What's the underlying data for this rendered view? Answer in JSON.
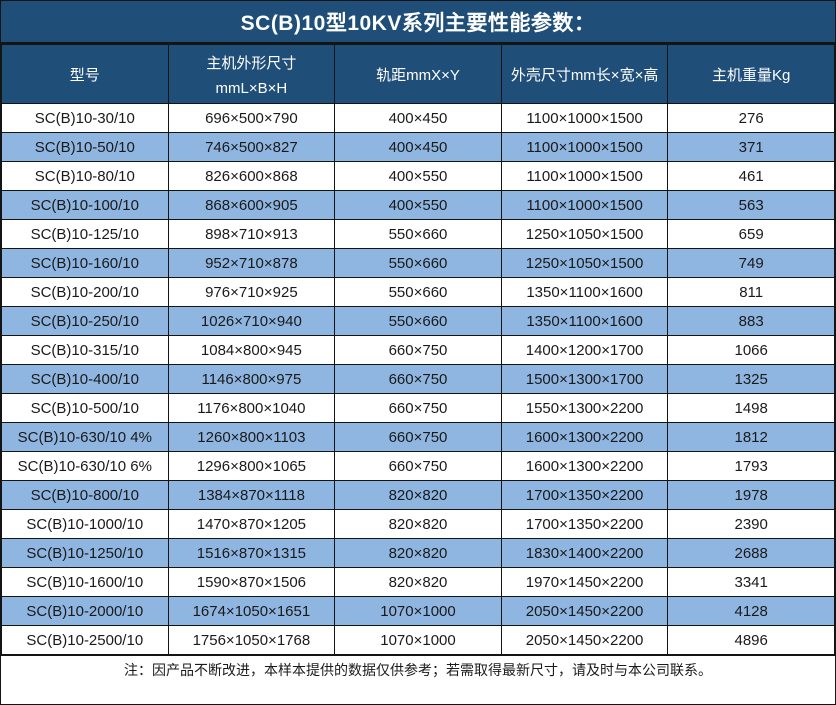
{
  "table": {
    "title": "SC(B)10型10KV系列主要性能参数：",
    "columns": [
      {
        "label": "型号"
      },
      {
        "label": "主机外形尺寸",
        "sub": "mmL×B×H"
      },
      {
        "label": "轨距mmX×Y"
      },
      {
        "label": "外壳尺寸mm长×宽×高"
      },
      {
        "label": "主机重量Kg"
      }
    ],
    "rows": [
      [
        "SC(B)10-30/10",
        "696×500×790",
        "400×450",
        "1100×1000×1500",
        "276"
      ],
      [
        "SC(B)10-50/10",
        "746×500×827",
        "400×450",
        "1100×1000×1500",
        "371"
      ],
      [
        "SC(B)10-80/10",
        "826×600×868",
        "400×550",
        "1100×1000×1500",
        "461"
      ],
      [
        "SC(B)10-100/10",
        "868×600×905",
        "400×550",
        "1100×1000×1500",
        "563"
      ],
      [
        "SC(B)10-125/10",
        "898×710×913",
        "550×660",
        "1250×1050×1500",
        "659"
      ],
      [
        "SC(B)10-160/10",
        "952×710×878",
        "550×660",
        "1250×1050×1500",
        "749"
      ],
      [
        "SC(B)10-200/10",
        "976×710×925",
        "550×660",
        "1350×1100×1600",
        "811"
      ],
      [
        "SC(B)10-250/10",
        "1026×710×940",
        "550×660",
        "1350×1100×1600",
        "883"
      ],
      [
        "SC(B)10-315/10",
        "1084×800×945",
        "660×750",
        "1400×1200×1700",
        "1066"
      ],
      [
        "SC(B)10-400/10",
        "1146×800×975",
        "660×750",
        "1500×1300×1700",
        "1325"
      ],
      [
        "SC(B)10-500/10",
        "1176×800×1040",
        "660×750",
        "1550×1300×2200",
        "1498"
      ],
      [
        "SC(B)10-630/10 4%",
        "1260×800×1103",
        "660×750",
        "1600×1300×2200",
        "1812"
      ],
      [
        "SC(B)10-630/10 6%",
        "1296×800×1065",
        "660×750",
        "1600×1300×2200",
        "1793"
      ],
      [
        "SC(B)10-800/10",
        "1384×870×1118",
        "820×820",
        "1700×1350×2200",
        "1978"
      ],
      [
        "SC(B)10-1000/10",
        "1470×870×1205",
        "820×820",
        "1700×1350×2200",
        "2390"
      ],
      [
        "SC(B)10-1250/10",
        "1516×870×1315",
        "820×820",
        "1830×1400×2200",
        "2688"
      ],
      [
        "SC(B)10-1600/10",
        "1590×870×1506",
        "820×820",
        "1970×1450×2200",
        "3341"
      ],
      [
        "SC(B)10-2000/10",
        "1674×1050×1651",
        "1070×1000",
        "2050×1450×2200",
        "4128"
      ],
      [
        "SC(B)10-2500/10",
        "1756×1050×1768",
        "1070×1000",
        "2050×1450×2200",
        "4896"
      ]
    ],
    "note": "注：因产品不断改进，本样本提供的数据仅供参考；若需取得最新尺寸，请及时与本公司联系。"
  },
  "colors": {
    "header_bg": "#1F4E79",
    "header_text": "#FFFFFF",
    "row_bg": "#FFFFFF",
    "row_alt_bg": "#8FB5E1",
    "body_text": "#1A1A1A",
    "border": "#141414"
  }
}
